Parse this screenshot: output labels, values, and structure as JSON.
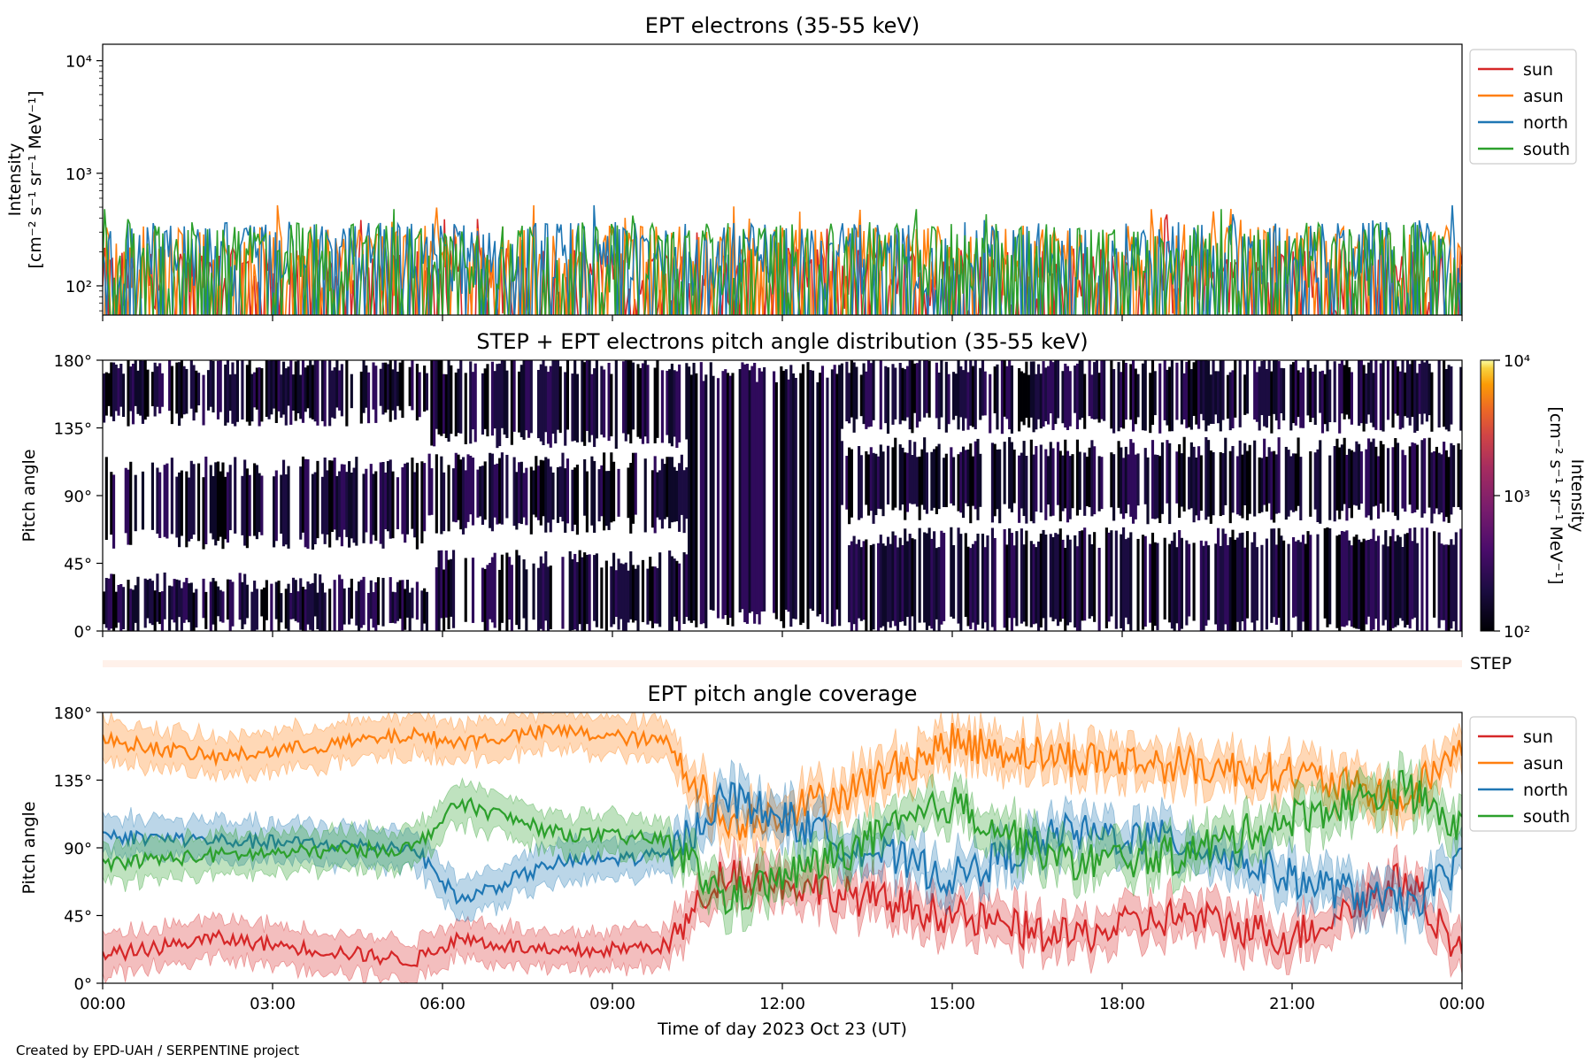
{
  "footer": "Created by EPD-UAH / SERPENTINE project",
  "x_axis": {
    "label": "Time of day 2023 Oct 23 (UT)",
    "ticks": [
      "00:00",
      "03:00",
      "06:00",
      "09:00",
      "12:00",
      "15:00",
      "18:00",
      "21:00",
      "00:00"
    ],
    "range_hours": [
      0,
      24
    ]
  },
  "series_colors": {
    "sun": "#d62728",
    "asun": "#ff7f0e",
    "north": "#1f77b4",
    "south": "#2ca02c"
  },
  "chart_data": [
    {
      "type": "line",
      "title": "EPT electrons (35-55 keV)",
      "ylabel_line1": "Intensity",
      "ylabel_line2": "[cm⁻² s⁻¹ sr⁻¹ MeV⁻¹]",
      "yscale": "log",
      "ylim": [
        55,
        14000
      ],
      "yticks": [
        {
          "value": 100,
          "label": "10²"
        },
        {
          "value": 1000,
          "label": "10³"
        },
        {
          "value": 10000,
          "label": "10⁴"
        }
      ],
      "legend_position": "outside-right",
      "series": [
        {
          "name": "sun",
          "baseline": 95,
          "peak_max": 430
        },
        {
          "name": "asun",
          "baseline": 150,
          "peak_max": 520
        },
        {
          "name": "north",
          "baseline": 160,
          "peak_max": 520
        },
        {
          "name": "south",
          "baseline": 160,
          "peak_max": 480
        }
      ]
    },
    {
      "type": "heatmap",
      "title": "STEP + EPT electrons pitch angle distribution (35-55 keV)",
      "ylabel": "Pitch angle",
      "ylim": [
        0,
        180
      ],
      "yticks": [
        "0°",
        "45°",
        "90°",
        "135°",
        "180°"
      ],
      "colorbar": {
        "label_line1": "Intensity",
        "label_line2": "[cm⁻² s⁻¹ sr⁻¹ MeV⁻¹]",
        "scale": "log",
        "range": [
          100,
          10000
        ],
        "ticks": [
          "10²",
          "10³",
          "10⁴"
        ],
        "colormap": "inferno"
      },
      "step_label": "STEP"
    },
    {
      "type": "line",
      "title": "EPT pitch angle coverage",
      "ylabel": "Pitch angle",
      "ylim": [
        0,
        180
      ],
      "yticks": [
        "0°",
        "45°",
        "90°",
        "135°",
        "180°"
      ],
      "legend_position": "outside-right",
      "series": [
        {
          "name": "sun",
          "keypoints_h": [
            0,
            2,
            5.5,
            6.3,
            8,
            10,
            11,
            13,
            15,
            17,
            19,
            21,
            23,
            24
          ],
          "keypoints_deg": [
            18,
            30,
            15,
            30,
            20,
            25,
            75,
            60,
            45,
            30,
            45,
            30,
            70,
            20
          ]
        },
        {
          "name": "asun",
          "keypoints_h": [
            0,
            2,
            5.5,
            6.3,
            8,
            10,
            11,
            13,
            15,
            17,
            19,
            21,
            23,
            24
          ],
          "keypoints_deg": [
            162,
            150,
            165,
            160,
            168,
            160,
            105,
            125,
            160,
            150,
            145,
            140,
            120,
            160
          ]
        },
        {
          "name": "north",
          "keypoints_h": [
            0,
            2,
            5.5,
            6.3,
            8,
            10,
            11,
            13,
            15,
            17,
            19,
            21,
            23,
            24
          ],
          "keypoints_deg": [
            98,
            95,
            90,
            55,
            80,
            85,
            125,
            95,
            70,
            100,
            95,
            70,
            50,
            80
          ]
        },
        {
          "name": "south",
          "keypoints_h": [
            0,
            2,
            5.5,
            6.3,
            8,
            10,
            11,
            13,
            15,
            17,
            19,
            21,
            23,
            24
          ],
          "keypoints_deg": [
            80,
            85,
            90,
            120,
            100,
            95,
            55,
            85,
            120,
            80,
            85,
            110,
            130,
            100
          ]
        }
      ]
    }
  ]
}
